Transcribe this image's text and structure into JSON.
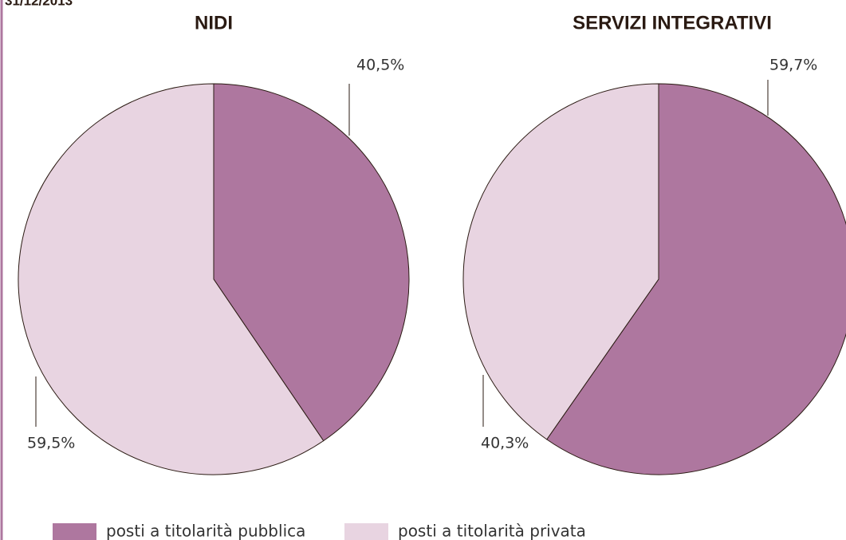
{
  "date": "31/12/2013",
  "chart_data": [
    {
      "type": "pie",
      "title": "NIDI",
      "categories": [
        "posti a titolarità pubblica",
        "posti a titolarità privata"
      ],
      "values": [
        40.5,
        59.5
      ],
      "value_labels": [
        "40,5%",
        "59,5%"
      ],
      "colors": [
        "#ae779f",
        "#e8d4e1"
      ]
    },
    {
      "type": "pie",
      "title": "SERVIZI INTEGRATIVI",
      "categories": [
        "posti a titolarità pubblica",
        "posti a titolarità privata"
      ],
      "values": [
        59.7,
        40.3
      ],
      "value_labels": [
        "59,7%",
        "40,3%"
      ],
      "colors": [
        "#ae779f",
        "#e8d4e1"
      ]
    }
  ]
}
